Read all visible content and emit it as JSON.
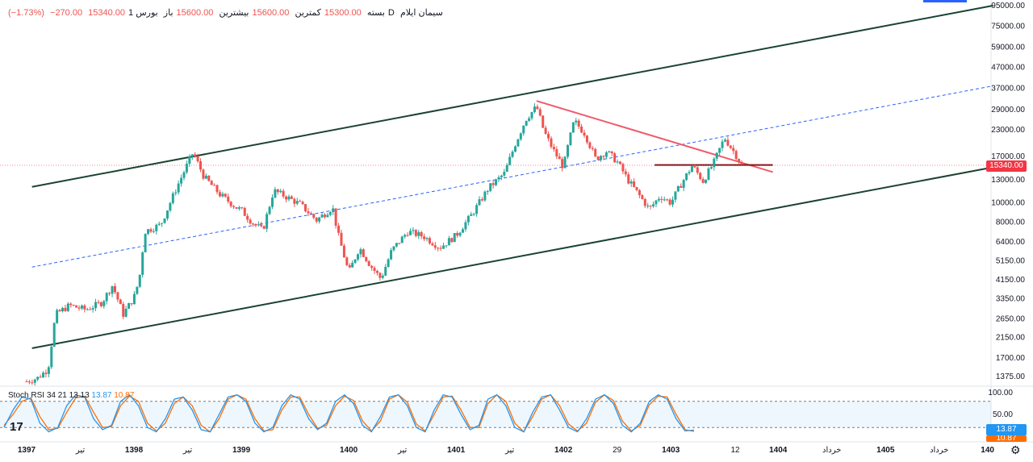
{
  "header": {
    "symbol": "سیمان ایلام",
    "interval": "1D",
    "exchange": "بورس",
    "open_label": "باز",
    "open": "15600.00",
    "high_label": "بیشترین",
    "high": "15600.00",
    "low_label": "کمترین",
    "low": "15300.00",
    "close_label": "بسته",
    "close": "15340.00",
    "change": "−270.00",
    "change_pct": "(−1.73%)"
  },
  "indicator": {
    "name": "Stoch RSI",
    "params": "34 21 13 13",
    "k_value": "13.87",
    "d_value": "10.87",
    "k_color": "#2196f3",
    "d_color": "#ff6d00",
    "upper_band": 80,
    "lower_band": 20,
    "axis_ticks": [
      "100.00",
      "50.00"
    ]
  },
  "price_axis": {
    "scale": "log",
    "ticks": [
      "95000.00",
      "75000.00",
      "59000.00",
      "47000.00",
      "37000.00",
      "29000.00",
      "23000.00",
      "17000.00",
      "13000.00",
      "10000.00",
      "8000.00",
      "6400.00",
      "5150.00",
      "4150.00",
      "3350.00",
      "2650.00",
      "2150.00",
      "1700.00",
      "1375.00"
    ],
    "last_price": "15340.00",
    "last_price_color": "#f23645"
  },
  "time_axis": {
    "labels": [
      "1397",
      "تیر",
      "1398",
      "تیر",
      "1399",
      "1400",
      "تیر",
      "1401",
      "تیر",
      "1402",
      "29",
      "1403",
      "12",
      "1404",
      "خرداد",
      "1405",
      "خرداد",
      "140"
    ]
  },
  "chart_data": {
    "type": "line",
    "title": "",
    "xlabel": "",
    "ylabel": "",
    "x_unit": "years (Solar Hijri)",
    "ylim": [
      1200,
      95000
    ],
    "xlim": [
      1397.0,
      1405.9
    ],
    "colors": {
      "up": "#26a69a",
      "down": "#ef5350",
      "channel": "#1b4332",
      "midline": "#2962ff",
      "trendline": "#f05a6a",
      "support": "#7b1010"
    },
    "series": [
      {
        "values": [
          [
            1397.0,
            1300
          ],
          [
            1397.1,
            1350
          ],
          [
            1397.2,
            1500
          ],
          [
            1397.27,
            2800
          ],
          [
            1397.4,
            3100
          ],
          [
            1397.55,
            2950
          ],
          [
            1397.7,
            3200
          ],
          [
            1397.8,
            3900
          ],
          [
            1397.9,
            2800
          ],
          [
            1398.0,
            3400
          ],
          [
            1398.05,
            4200
          ],
          [
            1398.1,
            7200
          ],
          [
            1398.25,
            7800
          ],
          [
            1398.4,
            12000
          ],
          [
            1398.55,
            17800
          ],
          [
            1398.65,
            13500
          ],
          [
            1398.8,
            11000
          ],
          [
            1398.95,
            9500
          ],
          [
            1399.0,
            9200
          ],
          [
            1399.1,
            8000
          ],
          [
            1399.2,
            7300
          ],
          [
            1399.3,
            11500
          ],
          [
            1399.45,
            10500
          ],
          [
            1399.55,
            9800
          ],
          [
            1399.7,
            8200
          ],
          [
            1399.85,
            9500
          ],
          [
            1399.9,
            7000
          ],
          [
            1400.0,
            4500
          ],
          [
            1400.1,
            6000
          ],
          [
            1400.2,
            4900
          ],
          [
            1400.3,
            4200
          ],
          [
            1400.4,
            5800
          ],
          [
            1400.55,
            7200
          ],
          [
            1400.7,
            6800
          ],
          [
            1400.85,
            6000
          ],
          [
            1401.0,
            6900
          ],
          [
            1401.15,
            8800
          ],
          [
            1401.3,
            11800
          ],
          [
            1401.45,
            14000
          ],
          [
            1401.55,
            19500
          ],
          [
            1401.65,
            26000
          ],
          [
            1401.75,
            30000
          ],
          [
            1401.82,
            22500
          ],
          [
            1401.9,
            18500
          ],
          [
            1402.0,
            15000
          ],
          [
            1402.05,
            20000
          ],
          [
            1402.1,
            25500
          ],
          [
            1402.2,
            22000
          ],
          [
            1402.3,
            16500
          ],
          [
            1402.4,
            18000
          ],
          [
            1402.5,
            16000
          ],
          [
            1402.6,
            13000
          ],
          [
            1402.7,
            11000
          ],
          [
            1402.8,
            9300
          ],
          [
            1402.9,
            10800
          ],
          [
            1403.0,
            10000
          ],
          [
            1403.1,
            12500
          ],
          [
            1403.2,
            15300
          ],
          [
            1403.3,
            12800
          ],
          [
            1403.4,
            15800
          ],
          [
            1403.5,
            21000
          ],
          [
            1403.6,
            17500
          ],
          [
            1403.66,
            15340
          ]
        ]
      }
    ],
    "drawings": {
      "channel_upper": [
        [
          1397.05,
          12000
        ],
        [
          1406.0,
          95000
        ]
      ],
      "channel_lower": [
        [
          1397.05,
          1900
        ],
        [
          1406.0,
          15000
        ]
      ],
      "channel_mid": [
        [
          1397.05,
          4800
        ],
        [
          1406.0,
          38000
        ]
      ],
      "trendline": [
        [
          1401.75,
          32000
        ],
        [
          1403.95,
          14200
        ]
      ],
      "support": [
        [
          1402.85,
          15400
        ],
        [
          1403.95,
          15400
        ]
      ]
    },
    "stoch_rsi": {
      "k": [
        20,
        60,
        90,
        85,
        30,
        10,
        20,
        70,
        95,
        90,
        40,
        15,
        25,
        80,
        95,
        70,
        20,
        10,
        40,
        85,
        90,
        60,
        15,
        10,
        50,
        90,
        95,
        80,
        30,
        10,
        20,
        70,
        95,
        85,
        40,
        15,
        30,
        80,
        95,
        75,
        25,
        10,
        45,
        90,
        95,
        70,
        20,
        10,
        60,
        95,
        90,
        50,
        15,
        25,
        85,
        95,
        70,
        20,
        10,
        55,
        90,
        95,
        60,
        20,
        10,
        40,
        85,
        95,
        75,
        25,
        10,
        30,
        80,
        95,
        85,
        40,
        12,
        14
      ],
      "d": [
        25,
        50,
        80,
        88,
        45,
        15,
        18,
        55,
        88,
        92,
        55,
        20,
        22,
        70,
        92,
        80,
        30,
        12,
        30,
        75,
        90,
        70,
        25,
        10,
        40,
        85,
        95,
        85,
        40,
        12,
        15,
        60,
        90,
        90,
        50,
        18,
        25,
        70,
        92,
        82,
        35,
        12,
        35,
        85,
        95,
        78,
        28,
        12,
        50,
        90,
        92,
        60,
        20,
        20,
        75,
        95,
        80,
        30,
        10,
        45,
        85,
        95,
        70,
        28,
        12,
        30,
        78,
        95,
        82,
        35,
        12,
        25,
        72,
        92,
        90,
        50,
        15,
        11
      ]
    }
  }
}
